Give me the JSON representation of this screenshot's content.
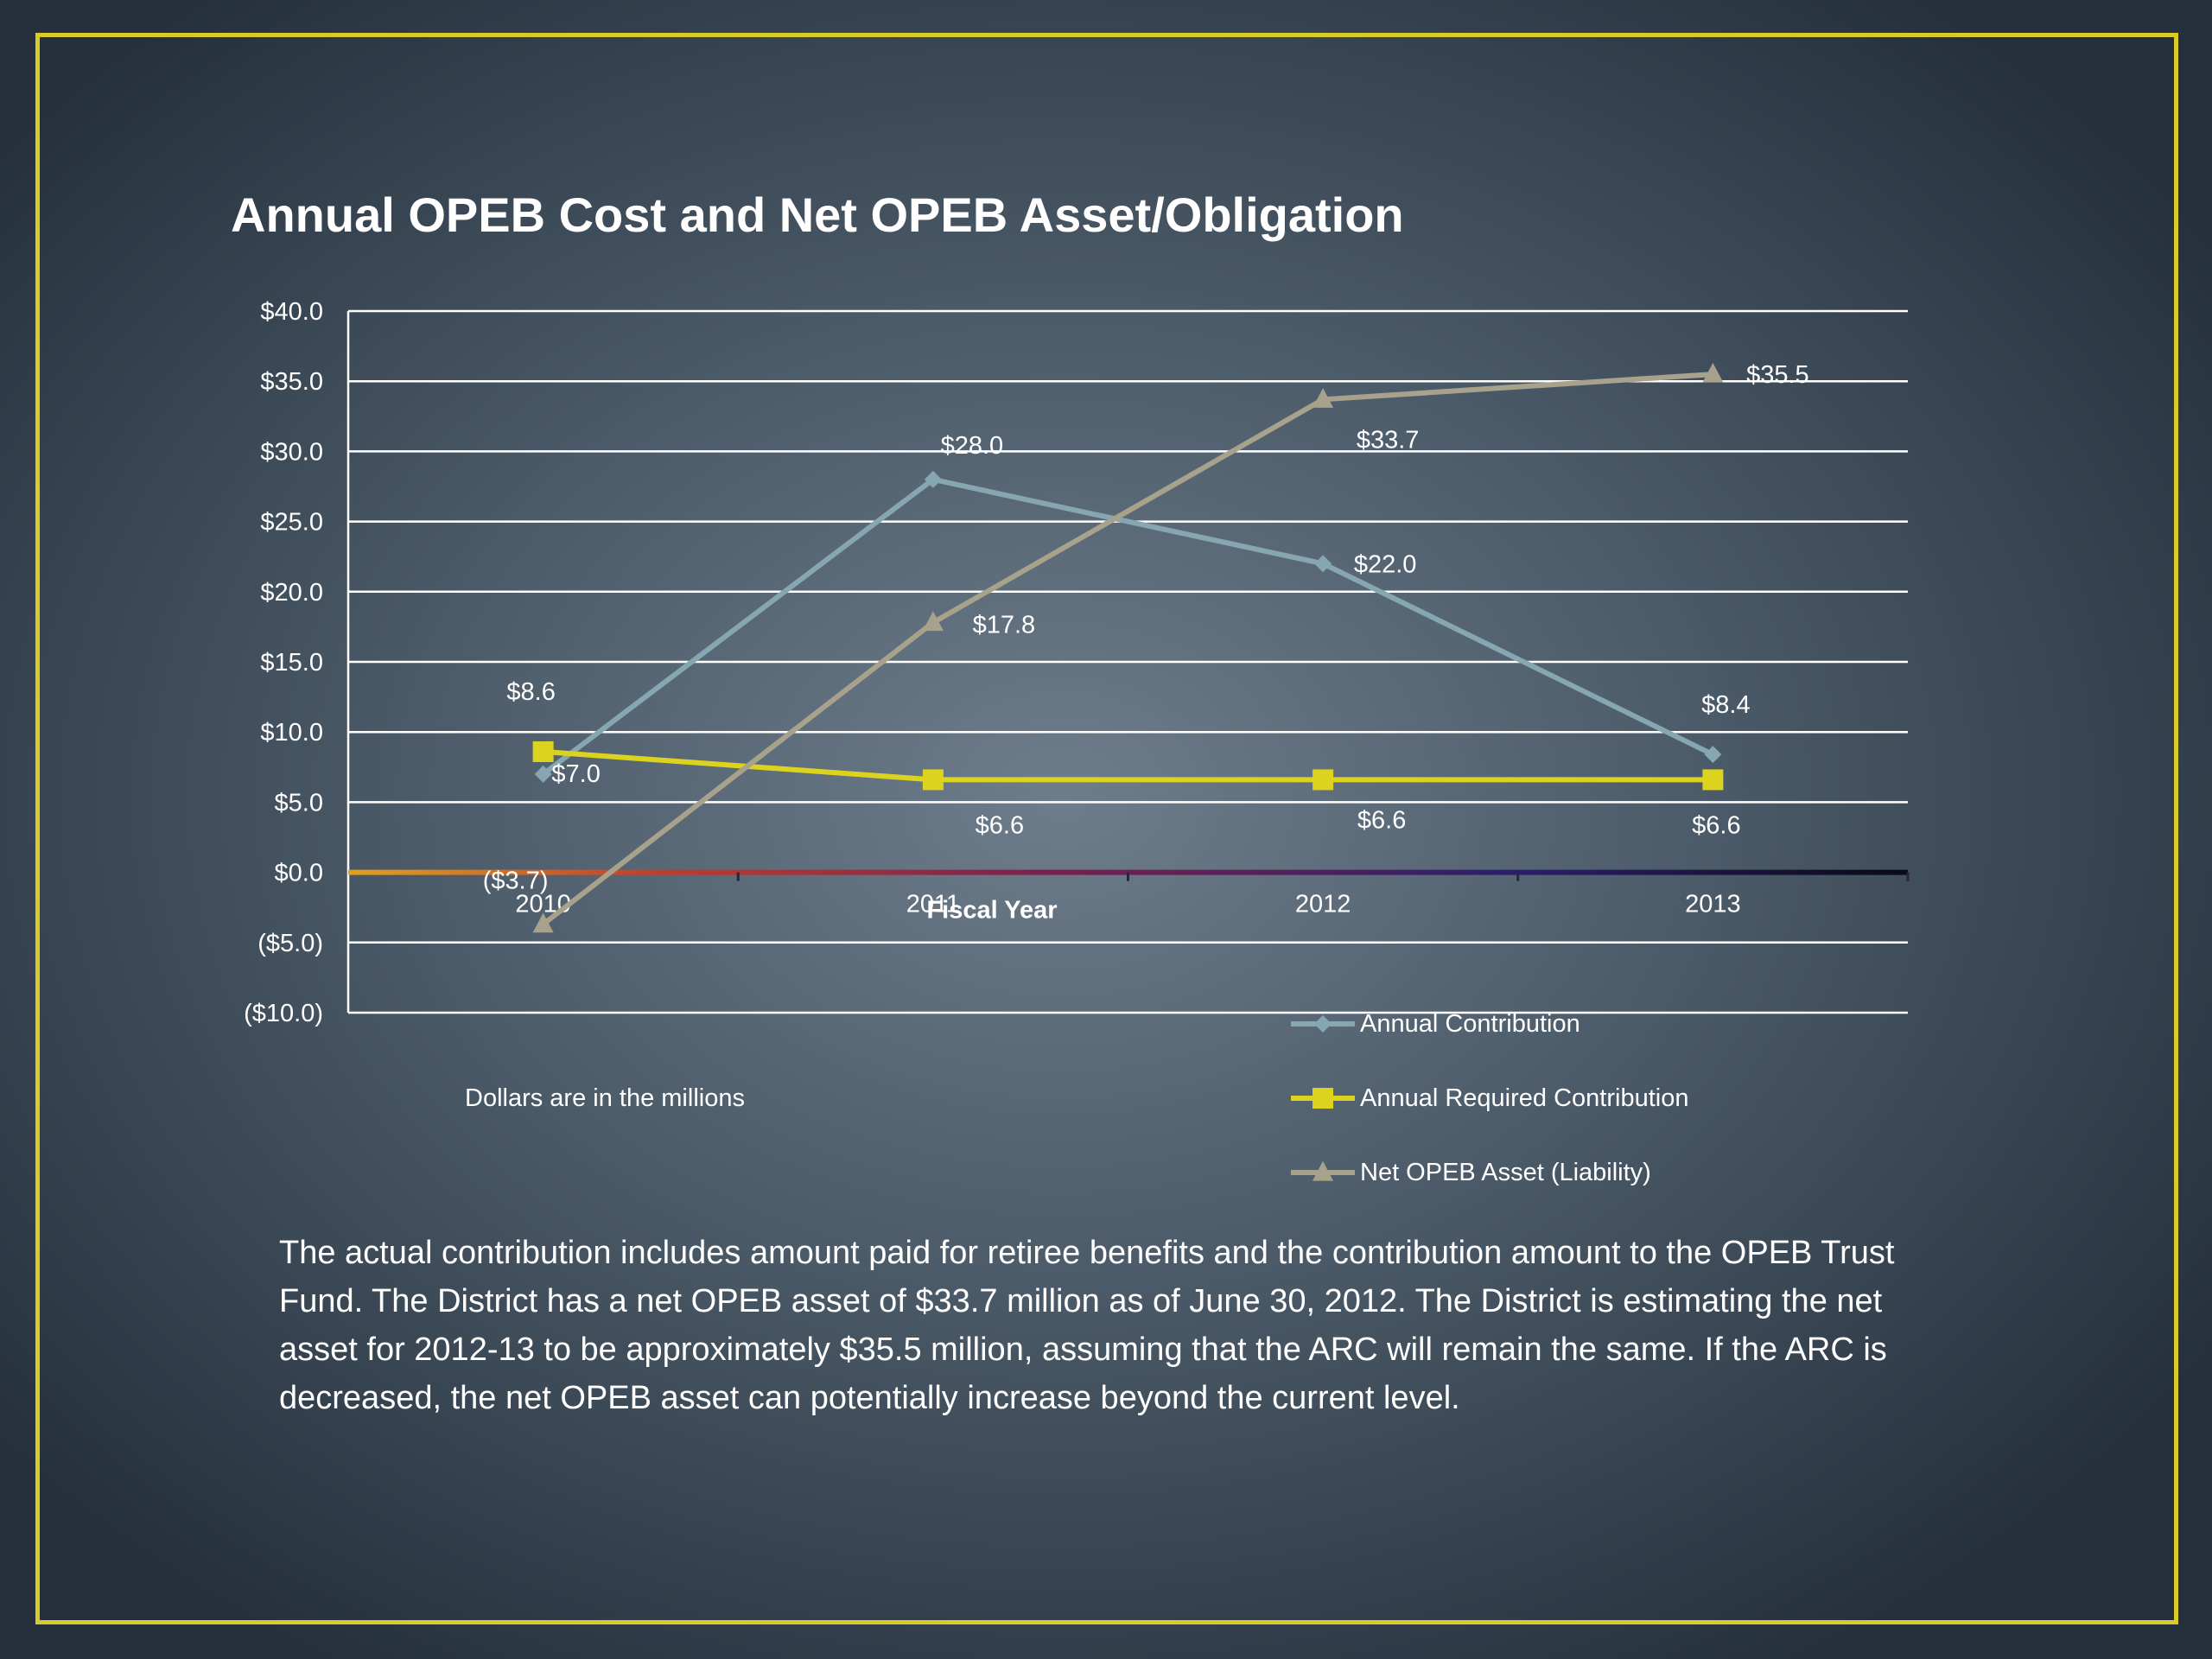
{
  "chart_data": {
    "type": "line",
    "title": "Annual OPEB Cost and Net OPEB Asset/Obligation",
    "xlabel": "Fiscal Year",
    "ylabel": "",
    "categories": [
      "2010",
      "2011",
      "2012",
      "2013"
    ],
    "ylim": [
      -10,
      40
    ],
    "ytick_step": 5,
    "ytick_labels": [
      "$40.0",
      "$35.0",
      "$30.0",
      "$25.0",
      "$20.0",
      "$15.0",
      "$10.0",
      "$5.0",
      "$0.0",
      "($5.0)",
      "($10.0)"
    ],
    "grid": true,
    "legend_position": "bottom-right",
    "series": [
      {
        "name": "Annual Contribution",
        "color": "#86a6b1",
        "marker": "diamond",
        "values": [
          7.0,
          28.0,
          22.0,
          8.4
        ],
        "labels": [
          "$7.0",
          "$28.0",
          "$22.0",
          "$8.4"
        ]
      },
      {
        "name": "Annual Required Contribution",
        "color": "#dcd31e",
        "marker": "square",
        "values": [
          8.6,
          6.6,
          6.6,
          6.6
        ],
        "labels": [
          "$8.6",
          "$6.6",
          "$6.6",
          "$6.6"
        ]
      },
      {
        "name": "Net OPEB Asset (Liability)",
        "color": "#a8a28c",
        "marker": "triangle",
        "values": [
          -3.7,
          17.8,
          33.7,
          35.5
        ],
        "labels": [
          "($3.7)",
          "$17.8",
          "$33.7",
          "$35.5"
        ]
      }
    ],
    "annotation": "Dollars are in the millions"
  },
  "body_text": "The actual contribution includes amount paid for retiree benefits and the contribution amount to the OPEB Trust Fund.  The District has a net OPEB asset of $33.7 million as of June 30, 2012.  The District is estimating the net asset for 2012-13 to be approximately $35.5 million, assuming that the ARC will remain the same.  If the ARC is decreased, the net OPEB asset can potentially increase  beyond the current level."
}
